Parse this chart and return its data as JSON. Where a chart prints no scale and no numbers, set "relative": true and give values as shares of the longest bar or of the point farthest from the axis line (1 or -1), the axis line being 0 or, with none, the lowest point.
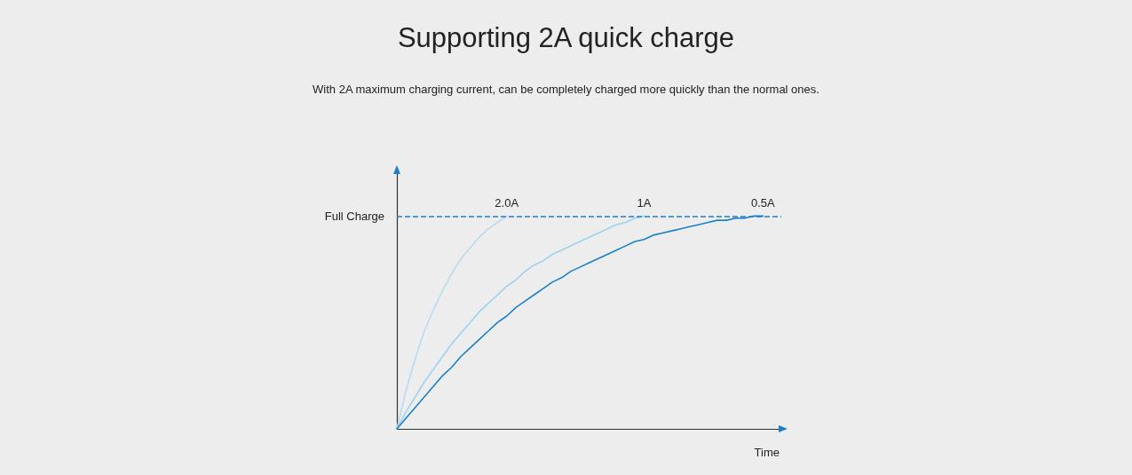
{
  "chart_data": {
    "type": "line",
    "title": "Supporting 2A quick charge",
    "subtitle": "With 2A maximum charging current, can be completely charged more quickly than the normal ones.",
    "xlabel": "Time",
    "relative": true,
    "legend": false,
    "grid": false,
    "marker": "none",
    "line_style": "solid",
    "categories": [
      null,
      null,
      null,
      null,
      null,
      null,
      null,
      null,
      null,
      null,
      null,
      null,
      null,
      null,
      null,
      null,
      null,
      null,
      null,
      null,
      null,
      null,
      null,
      null,
      null,
      null,
      null,
      null,
      null,
      null,
      null,
      null,
      null,
      null,
      null,
      null,
      null,
      null,
      null,
      null,
      null,
      null,
      null
    ],
    "series": [
      {
        "name": "2.0A",
        "color": "#b5dcf2",
        "values": [
          0,
          0.18,
          0.33,
          0.46,
          0.56,
          0.65,
          0.73,
          0.8,
          0.85,
          0.9,
          0.94,
          0.97,
          1,
          null,
          null,
          null,
          null,
          null,
          null,
          null,
          null,
          null,
          null,
          null,
          null,
          null,
          null,
          null,
          null,
          null,
          null,
          null,
          null,
          null,
          null,
          null,
          null,
          null,
          null,
          null,
          null,
          null,
          null
        ]
      },
      {
        "name": "1A",
        "color": "#9dd2f0",
        "values": [
          0,
          0.08,
          0.15,
          0.22,
          0.28,
          0.34,
          0.4,
          0.45,
          0.5,
          0.55,
          0.59,
          0.63,
          0.67,
          0.7,
          0.74,
          0.77,
          0.79,
          0.82,
          0.84,
          0.86,
          0.88,
          0.9,
          0.92,
          0.94,
          0.96,
          0.97,
          0.99,
          1,
          null,
          null,
          null,
          null,
          null,
          null,
          null,
          null,
          null,
          null,
          null,
          null,
          null,
          null,
          null
        ]
      },
      {
        "name": "0.5A",
        "color": "#1a80cc",
        "values": [
          0,
          0.05,
          0.1,
          0.15,
          0.2,
          0.25,
          0.29,
          0.34,
          0.38,
          0.42,
          0.46,
          0.5,
          0.53,
          0.57,
          0.6,
          0.63,
          0.66,
          0.69,
          0.71,
          0.74,
          0.76,
          0.78,
          0.8,
          0.82,
          0.84,
          0.86,
          0.88,
          0.89,
          0.91,
          0.92,
          0.93,
          0.94,
          0.95,
          0.96,
          0.97,
          0.98,
          0.98,
          0.99,
          0.99,
          1,
          1,
          null,
          null
        ]
      }
    ],
    "ref_lines": [
      {
        "axis": "y",
        "value": 1,
        "label": "Full Charge",
        "color": "#1a80cc",
        "line_style": "dashed"
      }
    ]
  }
}
